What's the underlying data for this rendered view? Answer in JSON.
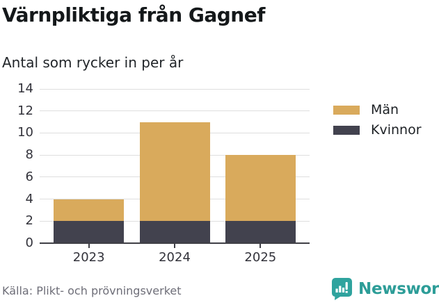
{
  "header": {
    "title": "Värnpliktiga från Gagnef",
    "subtitle": "Antal som rycker in per år"
  },
  "chart_data": {
    "type": "bar",
    "stacked": true,
    "title": "Värnpliktiga från Gagnef",
    "subtitle": "Antal som rycker in per år",
    "categories": [
      "2023",
      "2024",
      "2025"
    ],
    "series": [
      {
        "name": "Män",
        "color": "#D9AA5C",
        "values": [
          2,
          9,
          6
        ]
      },
      {
        "name": "Kvinnor",
        "color": "#42424E",
        "values": [
          2,
          2,
          2
        ]
      }
    ],
    "stack_totals": [
      4,
      11,
      8
    ],
    "yticks": [
      0,
      2,
      4,
      6,
      8,
      10,
      12,
      14
    ],
    "ylim": [
      0,
      14
    ],
    "xlabel": "",
    "ylabel": "",
    "grid": true,
    "legend_position": "right"
  },
  "footer": {
    "source": "Källa: Plikt- och prövningsverket",
    "brand": "Newsworthy",
    "brand_icon": "newsworthy-speech-bubble-chart-icon"
  },
  "colors": {
    "grid": "#DEDEDE",
    "axis": "#3F3F46",
    "brand_teal": "#2D9D98",
    "source_gray": "#6E6E78"
  }
}
